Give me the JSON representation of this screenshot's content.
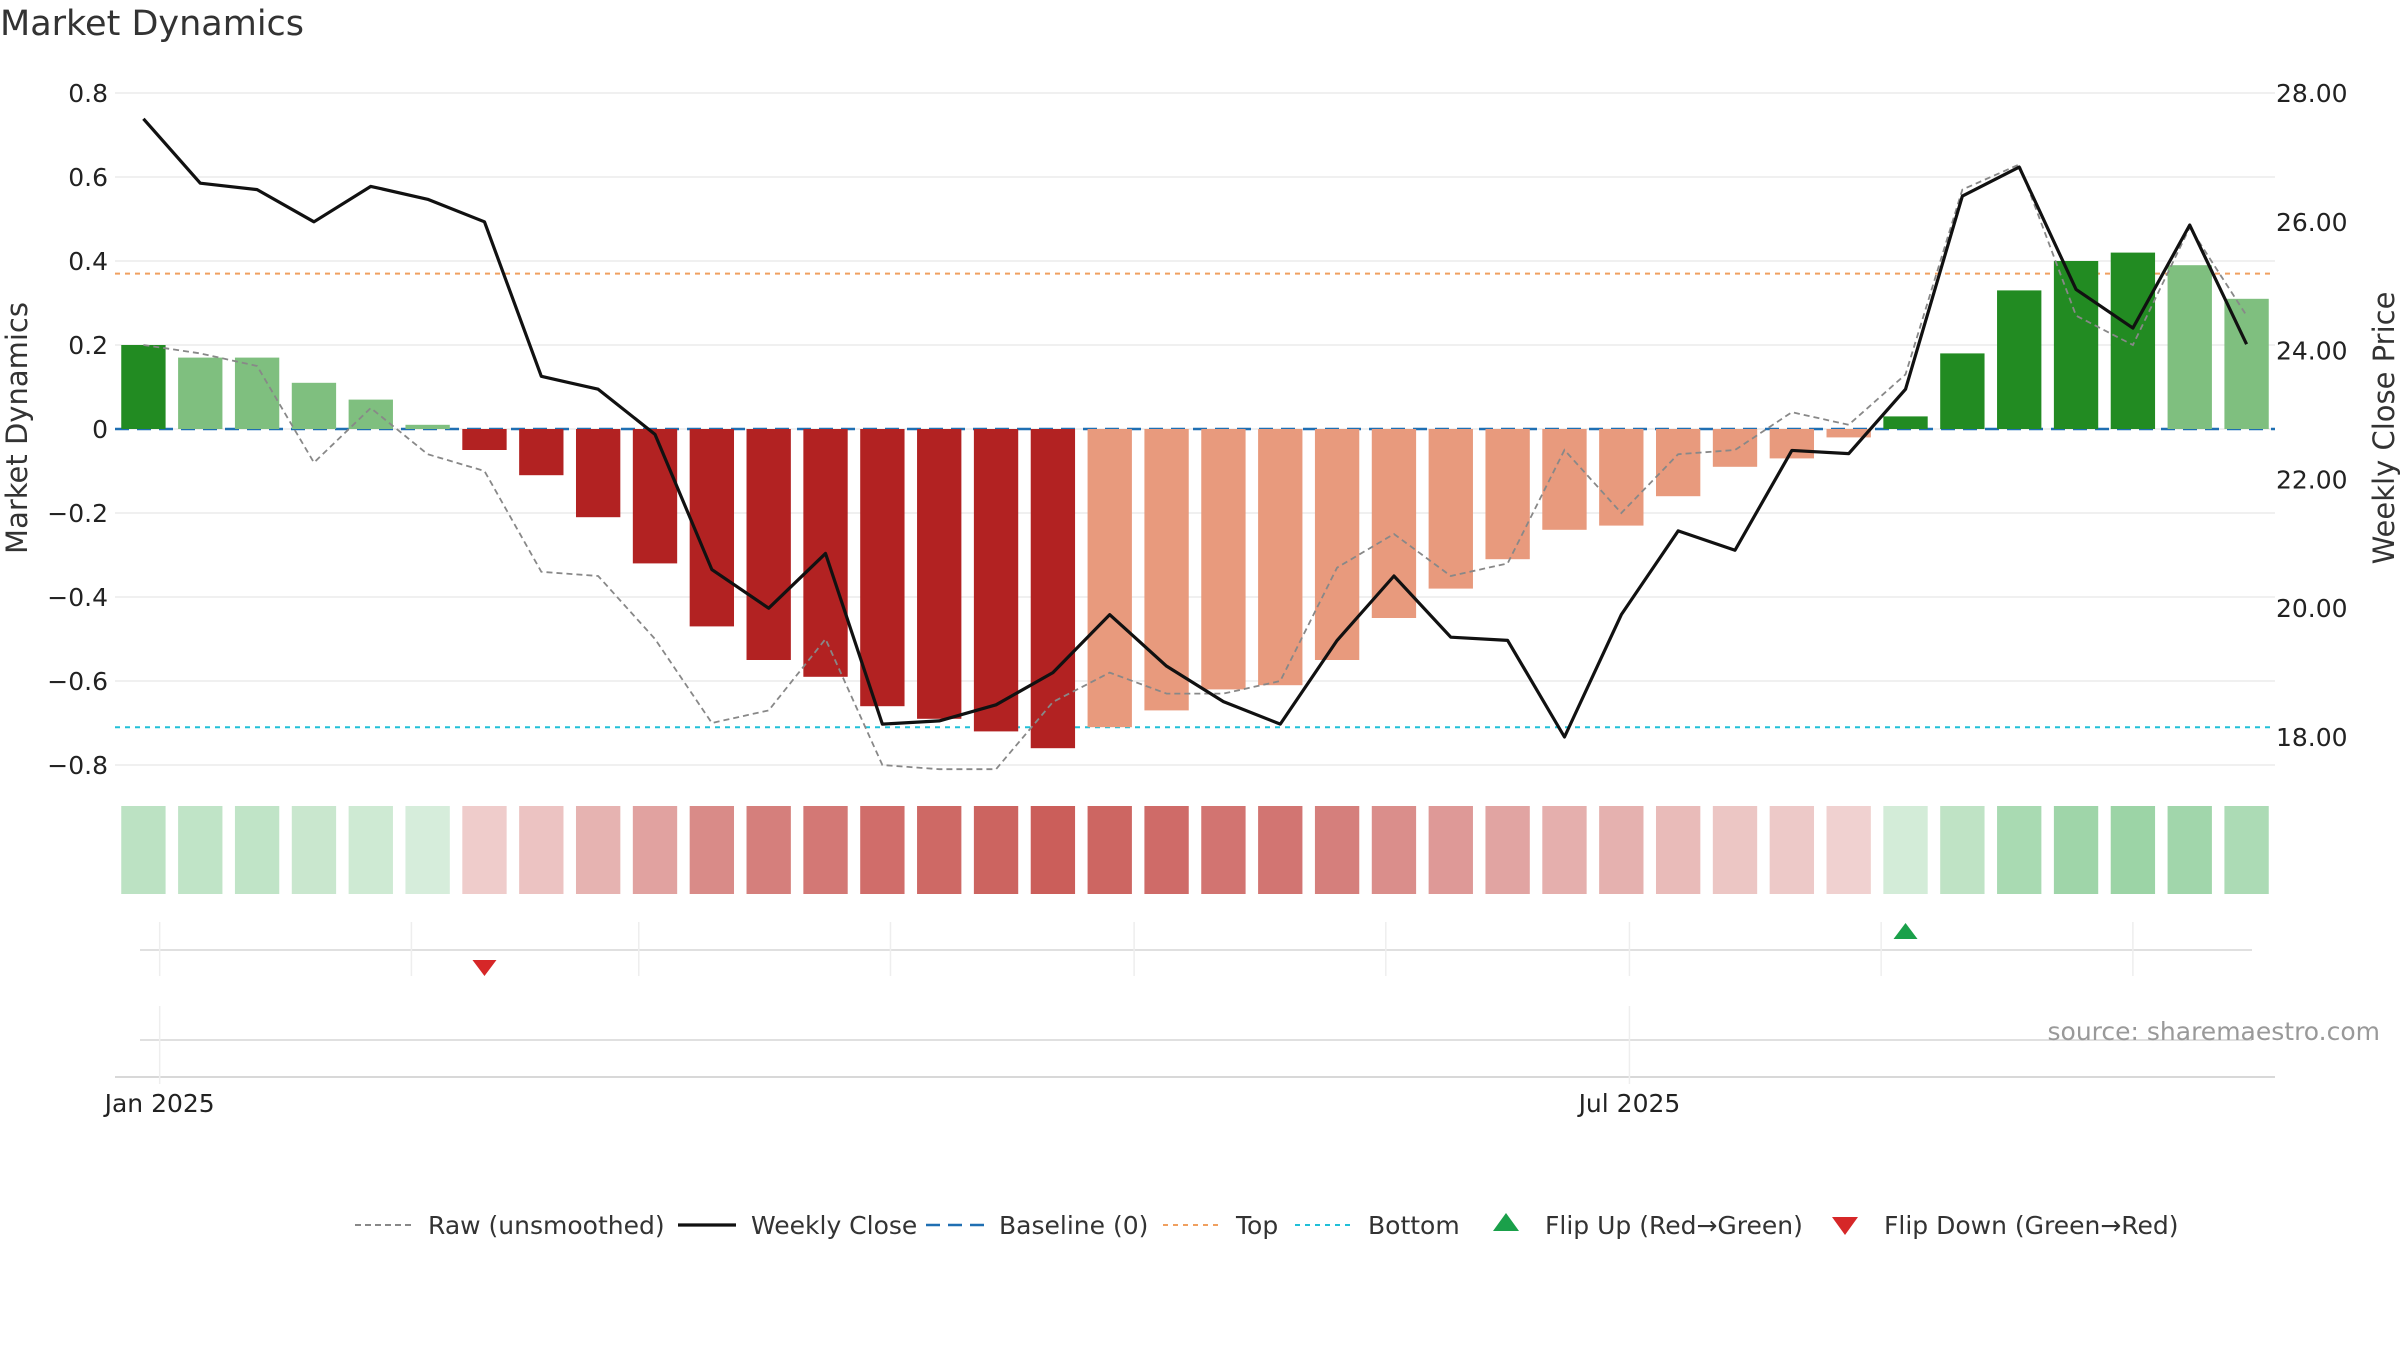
{
  "title": "Market Dynamics",
  "source": "source: sharemaestro.com",
  "chart_data": {
    "type": "bar",
    "title": "Market Dynamics",
    "ylabel_left": "Market Dynamics",
    "ylabel_right": "Weekly Close Price",
    "ylim_left": [
      -0.8,
      0.8
    ],
    "ylim_right": [
      18.0,
      28.0
    ],
    "y_ticks_left": [
      "0.8",
      "0.6",
      "0.4",
      "0.2",
      "0",
      "−0.2",
      "−0.4",
      "−0.6",
      "−0.8"
    ],
    "y_ticks_right": [
      "28.00",
      "26.00",
      "24.00",
      "22.00",
      "20.00",
      "18.00"
    ],
    "x_tick_labels": [
      "Jan 2025",
      "Jul 2025"
    ],
    "x": [
      "2024-12-30",
      "2025-01-06",
      "2025-01-13",
      "2025-01-20",
      "2025-01-27",
      "2025-02-03",
      "2025-02-10",
      "2025-02-17",
      "2025-02-24",
      "2025-03-03",
      "2025-03-10",
      "2025-03-17",
      "2025-03-24",
      "2025-03-31",
      "2025-04-07",
      "2025-04-14",
      "2025-04-21",
      "2025-04-28",
      "2025-05-05",
      "2025-05-12",
      "2025-05-19",
      "2025-05-26",
      "2025-06-02",
      "2025-06-09",
      "2025-06-16",
      "2025-06-23",
      "2025-06-30",
      "2025-07-07",
      "2025-07-14",
      "2025-07-21",
      "2025-07-28",
      "2025-08-04",
      "2025-08-11",
      "2025-08-18",
      "2025-08-25",
      "2025-09-01",
      "2025-09-08",
      "2025-09-15"
    ],
    "series": [
      {
        "name": "Raw (unsmoothed)",
        "kind": "dashed-line",
        "color": "#888888",
        "values": [
          0.2,
          0.18,
          0.15,
          -0.08,
          0.05,
          -0.06,
          -0.1,
          -0.34,
          -0.35,
          -0.5,
          -0.7,
          -0.67,
          -0.5,
          -0.8,
          -0.81,
          -0.81,
          -0.65,
          -0.58,
          -0.63,
          -0.63,
          -0.6,
          -0.33,
          -0.25,
          -0.35,
          -0.32,
          -0.05,
          -0.2,
          -0.06,
          -0.05,
          0.04,
          0.01,
          0.13,
          0.57,
          0.63,
          0.27,
          0.2,
          0.48,
          0.27
        ]
      },
      {
        "name": "Weekly Close",
        "kind": "line",
        "axis": "right",
        "color": "#111111",
        "values": [
          27.6,
          26.6,
          26.5,
          26.0,
          26.55,
          26.35,
          26.0,
          23.6,
          23.4,
          22.7,
          20.6,
          20.0,
          20.85,
          18.2,
          18.25,
          18.5,
          19.0,
          19.9,
          19.1,
          18.55,
          18.2,
          19.5,
          20.5,
          19.55,
          19.5,
          18.0,
          19.9,
          21.2,
          20.9,
          22.45,
          22.4,
          23.4,
          26.4,
          26.85,
          24.95,
          24.35,
          25.95,
          24.1
        ]
      },
      {
        "name": "Market Dynamics (smoothed)",
        "kind": "bars",
        "values": [
          0.2,
          0.17,
          0.17,
          0.11,
          0.07,
          0.01,
          -0.05,
          -0.11,
          -0.21,
          -0.32,
          -0.47,
          -0.55,
          -0.59,
          -0.66,
          -0.69,
          -0.72,
          -0.76,
          -0.71,
          -0.67,
          -0.62,
          -0.61,
          -0.55,
          -0.45,
          -0.38,
          -0.31,
          -0.24,
          -0.23,
          -0.16,
          -0.09,
          -0.07,
          -0.02,
          0.03,
          0.18,
          0.33,
          0.4,
          0.42,
          0.39,
          0.31
        ]
      }
    ],
    "reference_lines": [
      {
        "name": "Baseline (0)",
        "value": 0,
        "color": "#1f6fb2",
        "style": "dashed"
      },
      {
        "name": "Top",
        "value": 0.37,
        "color": "#f0a060",
        "style": "dotted"
      },
      {
        "name": "Bottom",
        "value": -0.71,
        "color": "#20c0d8",
        "style": "dotted"
      }
    ],
    "flips": [
      {
        "name": "Flip Down (Green→Red)",
        "x": "2025-02-10",
        "color": "#d62728"
      },
      {
        "name": "Flip Up (Red→Green)",
        "x": "2025-08-04",
        "color": "#1aa04a"
      }
    ],
    "colors": {
      "strong_green": "#228b22",
      "light_green": "#7fbf7f",
      "strong_red": "#b22222",
      "light_red": "#e89a7d"
    },
    "legend": [
      "Raw (unsmoothed)",
      "Weekly Close",
      "Baseline (0)",
      "Top",
      "Bottom",
      "Flip Up (Red→Green)",
      "Flip Down (Green→Red)"
    ],
    "legend_placement": "bottom-center",
    "grid": true
  }
}
